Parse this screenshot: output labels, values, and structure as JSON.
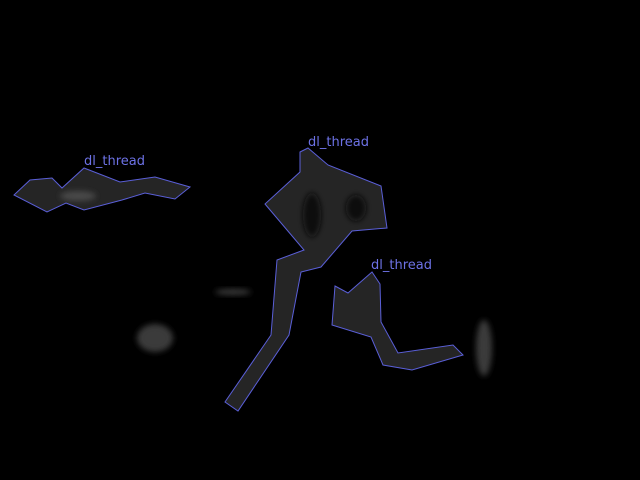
{
  "colors": {
    "background": "#000000",
    "outline": "#5a5fd8",
    "label": "#6d72e6",
    "region_fill": "#2c2c2c",
    "blob_dark": "#111111",
    "blob_light": "#3a3a3a"
  },
  "regions": [
    {
      "label": "dl_thread"
    },
    {
      "label": "dl_thread"
    },
    {
      "label": "dl_thread"
    }
  ]
}
